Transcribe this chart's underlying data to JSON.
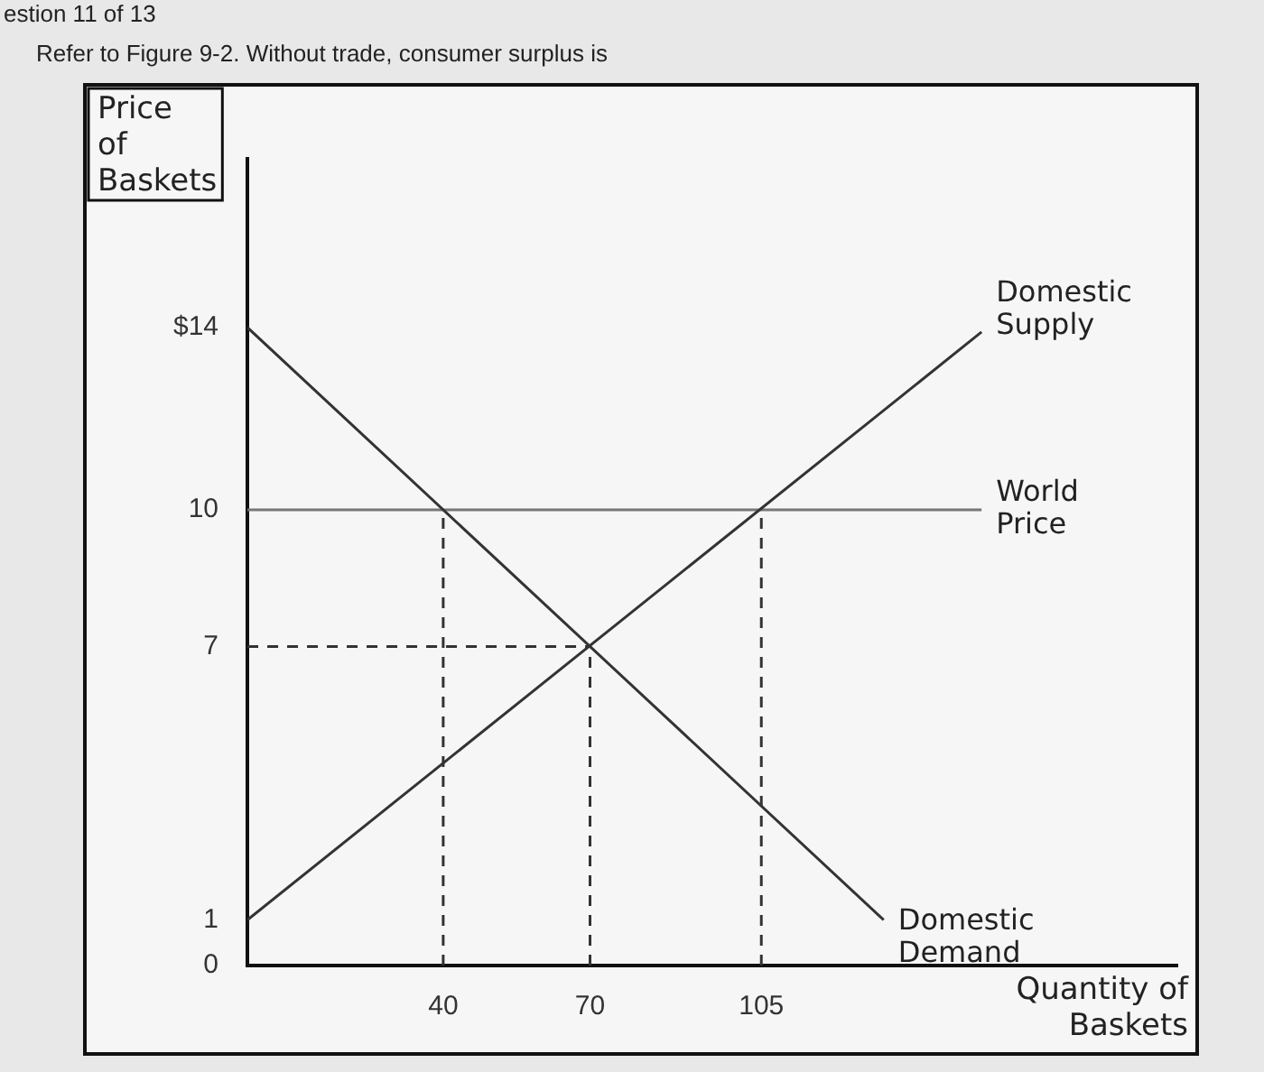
{
  "chart_data": {
    "type": "line",
    "title": "estion 11 of 13",
    "subtitle": "Refer to Figure 9-2. Without trade, consumer surplus is",
    "xlabel": "Quantity of Baskets",
    "ylabel": "Price of Baskets",
    "xlim": [
      0,
      190
    ],
    "xticks": [
      40,
      70,
      105
    ],
    "ylim": [
      0,
      17.7
    ],
    "yticks": [
      0,
      1,
      7,
      10,
      {
        "value": 14,
        "label": "$14"
      }
    ],
    "grid": false,
    "legend": false,
    "marker": "none",
    "series": [
      {
        "name": "Domestic Demand",
        "type": "line",
        "color": "#333333",
        "x": [
          0,
          130
        ],
        "values": [
          14,
          1
        ]
      },
      {
        "name": "Domestic Supply",
        "type": "line",
        "color": "#333333",
        "x": [
          0,
          150
        ],
        "values": [
          1,
          13.9
        ]
      },
      {
        "name": "World Price",
        "type": "line",
        "color": "#777777",
        "x": [
          0,
          150
        ],
        "values": [
          10,
          10
        ]
      },
      {
        "type": "line",
        "color": "#333333",
        "line_style": "dashed",
        "x": [
          0,
          70
        ],
        "values": [
          7,
          7
        ]
      },
      {
        "type": "line",
        "color": "#333333",
        "line_style": "dashed",
        "x": [
          40,
          40
        ],
        "values": [
          0,
          10
        ]
      },
      {
        "type": "line",
        "color": "#333333",
        "line_style": "dashed",
        "x": [
          70,
          70
        ],
        "values": [
          0,
          7
        ]
      },
      {
        "type": "line",
        "color": "#333333",
        "line_style": "dashed",
        "x": [
          105,
          105
        ],
        "values": [
          0,
          10
        ]
      }
    ]
  }
}
